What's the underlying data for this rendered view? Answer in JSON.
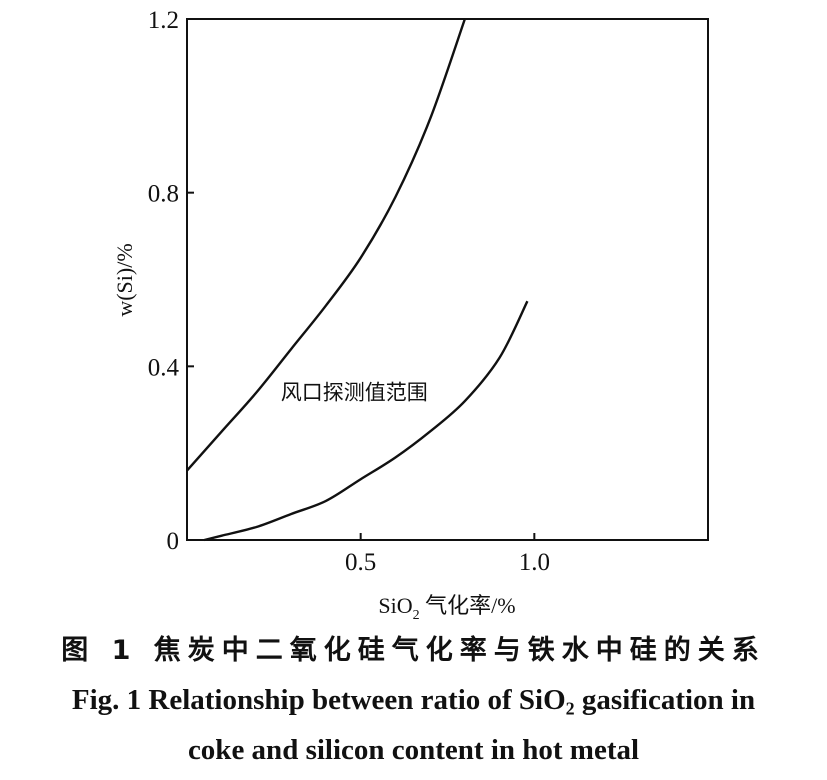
{
  "chart_data": {
    "type": "line",
    "title": "",
    "xlabel_prefix": "SiO",
    "xlabel_sub": "2",
    "xlabel_suffix": " 气化率/%",
    "ylabel": "w(Si)/%",
    "xlim": [
      0,
      1.5
    ],
    "ylim": [
      0,
      1.2
    ],
    "x_ticks": [
      0.5,
      1.0
    ],
    "x_tick_labels": [
      "0.5",
      "1.0"
    ],
    "y_ticks": [
      0,
      0.4,
      0.8,
      1.2
    ],
    "y_tick_labels": [
      "0",
      "0.4",
      "0.8",
      "1.2"
    ],
    "grid": false,
    "series": [
      {
        "x": [
          0.0,
          0.1,
          0.2,
          0.3,
          0.4,
          0.5,
          0.6,
          0.7,
          0.8
        ],
        "y": [
          0.16,
          0.25,
          0.34,
          0.44,
          0.54,
          0.65,
          0.79,
          0.97,
          1.2
        ]
      },
      {
        "x": [
          0.05,
          0.1,
          0.2,
          0.3,
          0.4,
          0.5,
          0.6,
          0.7,
          0.8,
          0.9,
          0.98
        ],
        "y": [
          0.0,
          0.01,
          0.03,
          0.06,
          0.09,
          0.14,
          0.19,
          0.25,
          0.32,
          0.42,
          0.55
        ]
      }
    ],
    "annotations": [
      {
        "text": "风口探测值范围",
        "x": 0.27,
        "y": 0.34
      }
    ]
  },
  "caption": {
    "cn": "图 1  焦炭中二氧化硅气化率与铁水中硅的关系",
    "en_line1_pre": "Fig. 1   Relationship between ratio of SiO",
    "en_line1_sub": "2",
    "en_line1_post": " gasification in",
    "en_line2": "coke and silicon content in hot metal"
  }
}
